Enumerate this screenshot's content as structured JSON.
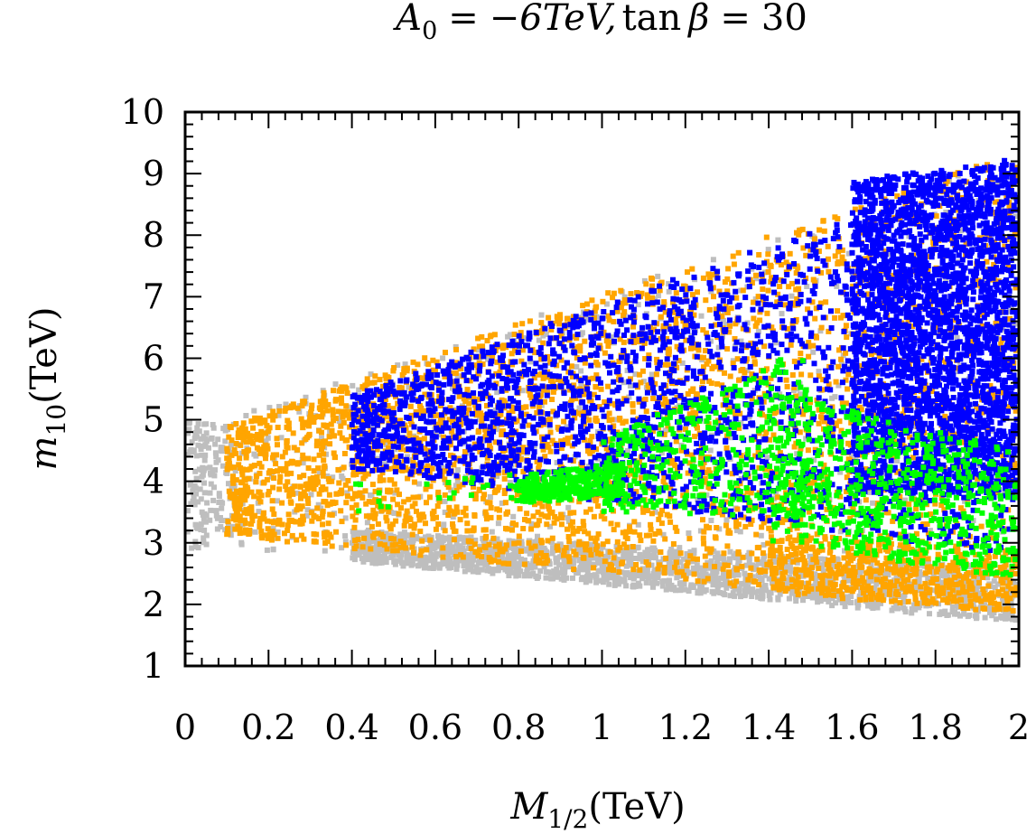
{
  "chart_data": {
    "type": "scatter",
    "title": {
      "a_symbol": "A",
      "a_subscript": "0",
      "equals": "=",
      "a_value": "−6TeV,",
      "tan_text": "tan",
      "beta": "β",
      "tan_value": "30"
    },
    "xlabel": {
      "symbol": "M",
      "subscript": "1/2",
      "unit": "(TeV)"
    },
    "ylabel": {
      "symbol": "m",
      "subscript": "10",
      "unit": "(TeV)"
    },
    "xlim": [
      0,
      2
    ],
    "ylim": [
      1,
      10
    ],
    "x_ticks": [
      0,
      0.2,
      0.4,
      0.6,
      0.8,
      1,
      1.2,
      1.4,
      1.6,
      1.8,
      2
    ],
    "y_ticks": [
      1,
      2,
      3,
      4,
      5,
      6,
      7,
      8,
      9,
      10
    ],
    "x_tick_labels": [
      "0",
      "0.2",
      "0.4",
      "0.6",
      "0.8",
      "1",
      "1.2",
      "1.4",
      "1.6",
      "1.8",
      "2"
    ],
    "y_tick_labels": [
      "1",
      "2",
      "3",
      "4",
      "5",
      "6",
      "7",
      "8",
      "9",
      "10"
    ],
    "grid": false,
    "legend": "none",
    "series": [
      {
        "name": "gray",
        "color": "#bebebe",
        "regions": [
          {
            "x": [
              0.0,
              0.12
            ],
            "ymin_at": [
              2.9,
              2.95
            ],
            "ymax_at": [
              5.0,
              4.9
            ],
            "n": 160
          },
          {
            "x": [
              0.1,
              2.0
            ],
            "ymin_at": [
              2.9,
              1.7
            ],
            "ymax_at": [
              5.0,
              9.3
            ],
            "n": 700
          },
          {
            "x": [
              0.4,
              2.0
            ],
            "ymin_at": [
              2.7,
              1.7
            ],
            "ymax_at": [
              3.2,
              2.6
            ],
            "n": 1700
          }
        ]
      },
      {
        "name": "orange",
        "color": "#ffa500",
        "regions": [
          {
            "x": [
              0.1,
              2.0
            ],
            "ymin_at": [
              3.1,
              1.85
            ],
            "ymax_at": [
              4.9,
              9.4
            ],
            "n": 3200
          },
          {
            "x": [
              1.4,
              2.0
            ],
            "ymin_at": [
              2.2,
              1.85
            ],
            "ymax_at": [
              3.2,
              2.8
            ],
            "n": 450
          }
        ]
      },
      {
        "name": "blue",
        "color": "#0000ff",
        "regions": [
          {
            "x": [
              0.4,
              2.0
            ],
            "ymin_at": [
              4.2,
              2.8
            ],
            "ymax_at": [
              5.4,
              9.3
            ],
            "n": 2300
          },
          {
            "x": [
              1.6,
              2.0
            ],
            "ymin_at": [
              3.8,
              3.8
            ],
            "ymax_at": [
              8.9,
              9.2
            ],
            "n": 2600
          }
        ]
      },
      {
        "name": "green",
        "color": "#00ff00",
        "regions": [
          {
            "x": [
              0.8,
              1.05
            ],
            "ymin_at": [
              3.65,
              3.75
            ],
            "ymax_at": [
              4.1,
              4.3
            ],
            "n": 320
          },
          {
            "x": [
              1.0,
              1.5
            ],
            "ymin_at": [
              3.5,
              3.4
            ],
            "ymax_at": [
              4.7,
              6.2
            ],
            "n": 360
          },
          {
            "x": [
              1.4,
              2.0
            ],
            "ymin_at": [
              3.0,
              2.4
            ],
            "ymax_at": [
              5.5,
              4.5
            ],
            "n": 650
          },
          {
            "x": [
              0.4,
              0.8
            ],
            "ymin_at": [
              3.5,
              3.6
            ],
            "ymax_at": [
              4.0,
              4.2
            ],
            "n": 25
          }
        ]
      }
    ]
  }
}
